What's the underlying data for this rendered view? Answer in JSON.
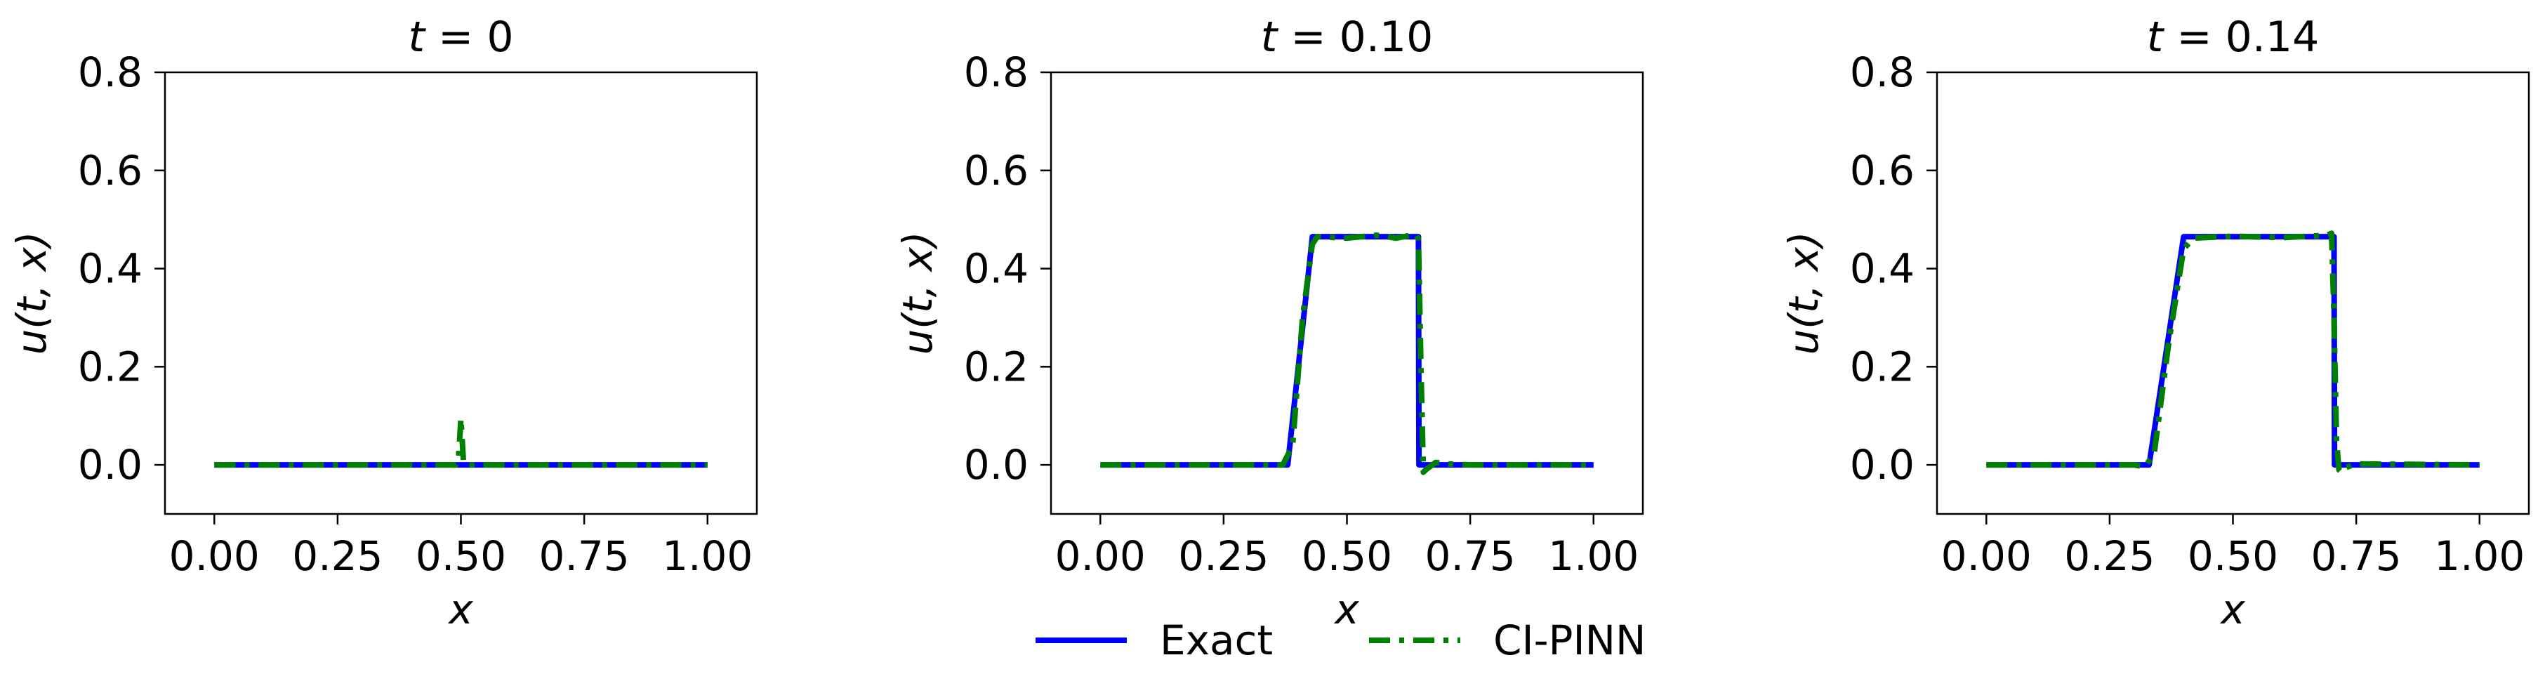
{
  "colors": {
    "exact": "#0000ff",
    "ci_pinn": "#008000",
    "axes": "#000000",
    "background": "#ffffff"
  },
  "legend": {
    "placement": "bottom-center",
    "exact_label": "Exact",
    "ci_pinn_label": "CI-PINN"
  },
  "chart_data": [
    {
      "type": "line",
      "title": "t = 0",
      "xlabel": "x",
      "ylabel": "u(t, x)",
      "xlim": [
        -0.1,
        1.1
      ],
      "ylim": [
        -0.1,
        0.8
      ],
      "xticks": [
        0.0,
        0.25,
        0.5,
        0.75,
        1.0
      ],
      "xtick_labels": [
        "0.00",
        "0.25",
        "0.50",
        "0.75",
        "1.00"
      ],
      "yticks": [
        0.0,
        0.2,
        0.4,
        0.6,
        0.8
      ],
      "ytick_labels": [
        "0.0",
        "0.2",
        "0.4",
        "0.6",
        "0.8"
      ],
      "grid": false,
      "series": [
        {
          "name": "Exact",
          "style": "solid",
          "x": [
            0.0,
            1.0
          ],
          "y": [
            0.0,
            0.0
          ]
        },
        {
          "name": "CI-PINN",
          "style": "dashdot",
          "x": [
            0.0,
            0.49,
            0.495,
            0.5,
            0.505,
            0.51,
            1.0
          ],
          "y": [
            0.0,
            0.0,
            0.01,
            0.095,
            0.01,
            0.0,
            0.0
          ]
        }
      ]
    },
    {
      "type": "line",
      "title": "t = 0.10",
      "xlabel": "x",
      "ylabel": "u(t, x)",
      "xlim": [
        -0.1,
        1.1
      ],
      "ylim": [
        -0.1,
        0.8
      ],
      "xticks": [
        0.0,
        0.25,
        0.5,
        0.75,
        1.0
      ],
      "xtick_labels": [
        "0.00",
        "0.25",
        "0.50",
        "0.75",
        "1.00"
      ],
      "yticks": [
        0.0,
        0.2,
        0.4,
        0.6,
        0.8
      ],
      "ytick_labels": [
        "0.0",
        "0.2",
        "0.4",
        "0.6",
        "0.8"
      ],
      "grid": false,
      "series": [
        {
          "name": "Exact",
          "style": "solid",
          "x": [
            0.0,
            0.38,
            0.43,
            0.645,
            0.646,
            1.0
          ],
          "y": [
            0.0,
            0.0,
            0.465,
            0.465,
            0.0,
            0.0
          ]
        },
        {
          "name": "CI-PINN",
          "style": "dashdot",
          "x": [
            0.0,
            0.37,
            0.39,
            0.41,
            0.43,
            0.44,
            0.5,
            0.56,
            0.6,
            0.64,
            0.645,
            0.65,
            0.655,
            0.66,
            0.68,
            0.7,
            0.75,
            1.0
          ],
          "y": [
            0.0,
            0.0,
            0.04,
            0.3,
            0.45,
            0.465,
            0.462,
            0.468,
            0.462,
            0.47,
            0.46,
            0.2,
            -0.015,
            -0.01,
            0.005,
            0.002,
            0.0,
            0.0
          ]
        }
      ]
    },
    {
      "type": "line",
      "title": "t = 0.14",
      "xlabel": "x",
      "ylabel": "u(t, x)",
      "xlim": [
        -0.1,
        1.1
      ],
      "ylim": [
        -0.1,
        0.8
      ],
      "xticks": [
        0.0,
        0.25,
        0.5,
        0.75,
        1.0
      ],
      "xtick_labels": [
        "0.00",
        "0.25",
        "0.50",
        "0.75",
        "1.00"
      ],
      "yticks": [
        0.0,
        0.2,
        0.4,
        0.6,
        0.8
      ],
      "ytick_labels": [
        "0.0",
        "0.2",
        "0.4",
        "0.6",
        "0.8"
      ],
      "grid": false,
      "series": [
        {
          "name": "Exact",
          "style": "solid",
          "x": [
            0.0,
            0.33,
            0.4,
            0.705,
            0.706,
            1.0
          ],
          "y": [
            0.0,
            0.0,
            0.465,
            0.465,
            0.0,
            0.0
          ]
        },
        {
          "name": "CI-PINN",
          "style": "dashdot",
          "x": [
            0.0,
            0.3,
            0.32,
            0.34,
            0.37,
            0.4,
            0.42,
            0.5,
            0.6,
            0.69,
            0.7,
            0.705,
            0.71,
            0.715,
            0.72,
            0.73,
            0.75,
            1.0
          ],
          "y": [
            0.0,
            0.0,
            -0.004,
            0.02,
            0.25,
            0.44,
            0.462,
            0.466,
            0.463,
            0.468,
            0.472,
            0.3,
            0.05,
            -0.01,
            -0.015,
            -0.005,
            0.002,
            0.0
          ]
        }
      ]
    }
  ]
}
